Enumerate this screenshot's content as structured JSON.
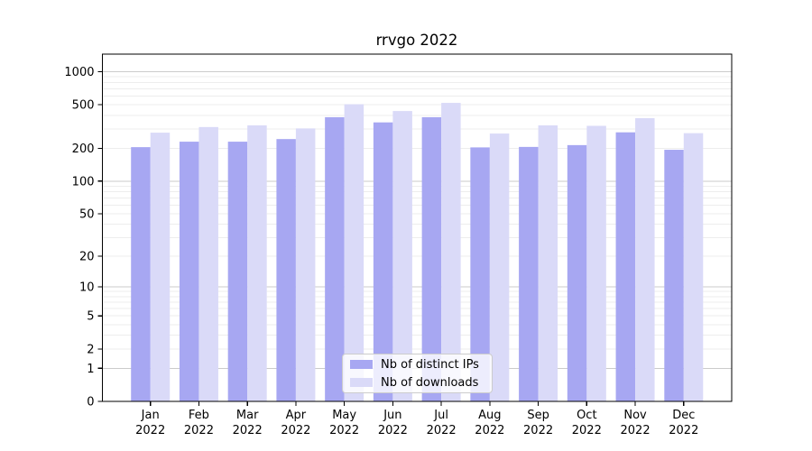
{
  "chart_data": {
    "type": "bar",
    "title": "rrvgo 2022",
    "x": {
      "months": [
        "Jan",
        "Feb",
        "Mar",
        "Apr",
        "May",
        "Jun",
        "Jul",
        "Aug",
        "Sep",
        "Oct",
        "Nov",
        "Dec"
      ],
      "year": "2022"
    },
    "series": [
      {
        "name": "Nb of distinct IPs",
        "color": "#a7a7f2",
        "values": [
          205,
          230,
          230,
          243,
          385,
          345,
          385,
          204,
          206,
          214,
          280,
          194
        ]
      },
      {
        "name": "Nb of downloads",
        "color": "#dadaf8",
        "values": [
          278,
          313,
          324,
          304,
          505,
          438,
          520,
          273,
          324,
          321,
          377,
          275
        ]
      }
    ],
    "y_axis": {
      "scale": "log10(value+1)",
      "ticks": [
        0,
        1,
        2,
        5,
        10,
        20,
        50,
        100,
        200,
        500,
        1000
      ],
      "tick_labels": [
        "0",
        "1",
        "2",
        "5",
        "10",
        "20",
        "50",
        "100",
        "200",
        "500",
        "1000"
      ],
      "range": [
        0,
        1450
      ]
    },
    "grid": "horizontal major decades + log minors",
    "legend_position": "lower center",
    "colors": {
      "major_grid": "#cbcbcb",
      "minor_grid": "#ededed",
      "axis": "#000000"
    }
  }
}
